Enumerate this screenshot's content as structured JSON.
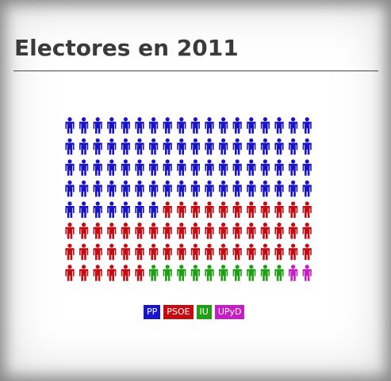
{
  "title": "Electores en 2011",
  "chart_data": {
    "type": "pictogram",
    "title": "Electores en 2011",
    "rows": 8,
    "columns": 18,
    "series": [
      {
        "name": "PP",
        "value": 79,
        "color": "#1a14c8"
      },
      {
        "name": "PSOE",
        "value": 53,
        "color": "#c40c12"
      },
      {
        "name": "IU",
        "value": 10,
        "color": "#1fa014"
      },
      {
        "name": "UPyD",
        "value": 2,
        "color": "#c41ec4"
      }
    ],
    "legend_position": "bottom-center"
  }
}
